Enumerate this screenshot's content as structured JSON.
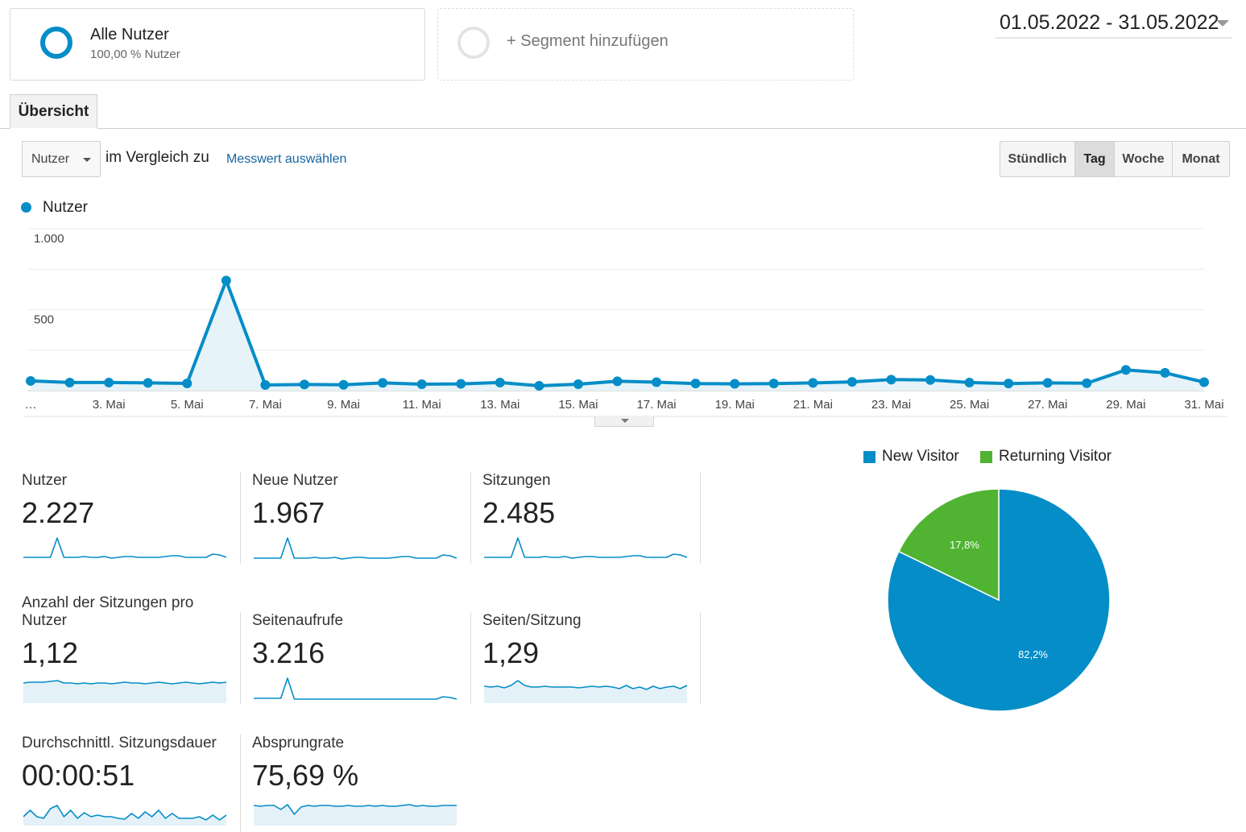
{
  "segments": {
    "active": {
      "name": "Alle Nutzer",
      "subtitle": "100,00 % Nutzer"
    },
    "add_label": "+ Segment hinzufügen"
  },
  "date_range": "01.05.2022 - 31.05.2022",
  "tabs": [
    {
      "label": "Übersicht",
      "active": true
    }
  ],
  "controls": {
    "metric_select": "Nutzer",
    "compare_text": "im Vergleich zu",
    "select_metric_link": "Messwert auswählen",
    "granularity": [
      {
        "label": "Stündlich",
        "active": false
      },
      {
        "label": "Tag",
        "active": true
      },
      {
        "label": "Woche",
        "active": false
      },
      {
        "label": "Monat",
        "active": false
      }
    ]
  },
  "colors": {
    "accent": "#058dc7",
    "returning": "#50b432",
    "link": "#1565a0"
  },
  "chart_data": [
    {
      "type": "line",
      "series": [
        {
          "name": "Nutzer",
          "values": [
            60,
            50,
            50,
            48,
            45,
            680,
            35,
            38,
            36,
            48,
            40,
            42,
            50,
            30,
            40,
            58,
            52,
            44,
            42,
            44,
            48,
            54,
            68,
            66,
            50,
            44,
            48,
            46,
            128,
            110,
            52
          ]
        }
      ],
      "x": [
        "1. Mai",
        "2. Mai",
        "3. Mai",
        "4. Mai",
        "5. Mai",
        "6. Mai",
        "7. Mai",
        "8. Mai",
        "9. Mai",
        "10. Mai",
        "11. Mai",
        "12. Mai",
        "13. Mai",
        "14. Mai",
        "15. Mai",
        "16. Mai",
        "17. Mai",
        "18. Mai",
        "19. Mai",
        "20. Mai",
        "21. Mai",
        "22. Mai",
        "23. Mai",
        "24. Mai",
        "25. Mai",
        "26. Mai",
        "27. Mai",
        "28. Mai",
        "29. Mai",
        "30. Mai",
        "31. Mai"
      ],
      "x_tick_labels": [
        "…",
        "3. Mai",
        "5. Mai",
        "7. Mai",
        "9. Mai",
        "11. Mai",
        "13. Mai",
        "15. Mai",
        "17. Mai",
        "19. Mai",
        "21. Mai",
        "23. Mai",
        "25. Mai",
        "27. Mai",
        "29. Mai",
        "31. Mai"
      ],
      "y_tick_labels": [
        "1.000",
        "500"
      ],
      "ylim": [
        0,
        1000
      ],
      "grid": true,
      "legend": "top-left"
    },
    {
      "type": "pie",
      "labels": [
        "New Visitor",
        "Returning Visitor"
      ],
      "values": [
        82.2,
        17.8
      ],
      "value_labels": [
        "82,2%",
        "17,8%"
      ],
      "colors": [
        "#058dc7",
        "#50b432"
      ],
      "legend": "top"
    }
  ],
  "metrics": [
    {
      "label": "Nutzer",
      "value": "2.227",
      "fill": false,
      "spark": [
        6,
        6,
        6,
        6,
        6,
        30,
        6,
        6,
        6,
        7,
        6,
        6,
        7,
        5,
        6,
        7,
        7,
        6,
        6,
        6,
        6,
        7,
        8,
        8,
        6,
        6,
        6,
        6,
        10,
        9,
        6
      ]
    },
    {
      "label": "Neue Nutzer",
      "value": "1.967",
      "fill": false,
      "spark": [
        5,
        5,
        5,
        5,
        5,
        30,
        5,
        5,
        5,
        6,
        5,
        5,
        6,
        4,
        5,
        6,
        6,
        5,
        5,
        5,
        5,
        6,
        7,
        7,
        5,
        5,
        5,
        5,
        9,
        8,
        5
      ]
    },
    {
      "label": "Sitzungen",
      "value": "2.485",
      "fill": false,
      "spark": [
        6,
        6,
        6,
        6,
        6,
        30,
        6,
        6,
        6,
        7,
        6,
        6,
        7,
        5,
        6,
        7,
        7,
        6,
        6,
        6,
        6,
        7,
        8,
        8,
        6,
        6,
        6,
        6,
        10,
        9,
        6
      ]
    },
    {
      "label": "Anzahl der Sitzungen pro Nutzer",
      "value": "1,12",
      "fill": true,
      "spark": [
        24,
        25,
        25,
        25,
        26,
        27,
        24,
        24,
        23,
        24,
        23,
        24,
        24,
        23,
        24,
        25,
        24,
        24,
        23,
        24,
        25,
        24,
        23,
        24,
        25,
        24,
        23,
        24,
        25,
        24,
        25
      ]
    },
    {
      "label": "Seitenaufrufe",
      "value": "3.216",
      "fill": false,
      "spark": [
        5,
        5,
        5,
        5,
        5,
        30,
        4,
        4,
        4,
        4,
        4,
        4,
        4,
        4,
        4,
        4,
        4,
        4,
        4,
        4,
        4,
        4,
        4,
        4,
        4,
        4,
        4,
        4,
        7,
        6,
        4
      ]
    },
    {
      "label": "Seiten/Sitzung",
      "value": "1,29",
      "fill": true,
      "spark": [
        20,
        19,
        20,
        18,
        21,
        27,
        21,
        19,
        19,
        20,
        19,
        19,
        19,
        19,
        18,
        19,
        20,
        19,
        20,
        19,
        17,
        21,
        17,
        19,
        16,
        20,
        17,
        19,
        20,
        17,
        21
      ]
    },
    {
      "label": "Durchschnittl. Sitzungsdauer",
      "value": "00:00:51",
      "fill": true,
      "spark": [
        10,
        18,
        10,
        8,
        20,
        24,
        10,
        18,
        8,
        15,
        10,
        12,
        10,
        10,
        8,
        7,
        14,
        8,
        16,
        10,
        18,
        8,
        14,
        8,
        8,
        8,
        10,
        6,
        12,
        6,
        12
      ]
    },
    {
      "label": "Absprungrate",
      "value": "75,69 %",
      "fill": true,
      "spark": [
        24,
        23,
        24,
        24,
        19,
        25,
        13,
        22,
        24,
        23,
        24,
        24,
        23,
        23,
        24,
        23,
        23,
        24,
        23,
        24,
        23,
        23,
        24,
        25,
        23,
        24,
        23,
        23,
        24,
        24,
        24
      ]
    }
  ]
}
